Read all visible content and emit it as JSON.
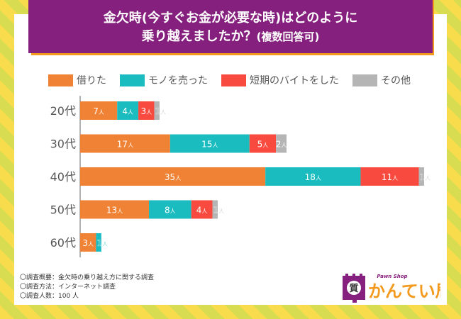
{
  "title": {
    "line1": "金欠時(今すぐお金が必要な時)はどのように",
    "line2": "乗り越えましたか？",
    "line2_suffix": "(複数回答可)"
  },
  "chart_data": {
    "type": "bar",
    "orientation": "horizontal",
    "stacked": true,
    "title": "金欠時(今すぐお金が必要な時)はどのように乗り越えましたか？(複数回答可)",
    "xlabel": "",
    "ylabel": "",
    "unit_suffix": "人",
    "categories": [
      "20代",
      "30代",
      "40代",
      "50代",
      "60代"
    ],
    "series": [
      {
        "name": "借りた",
        "color": "#ef8234",
        "values": [
          7,
          17,
          35,
          13,
          3
        ]
      },
      {
        "name": "モノを売った",
        "color": "#1bbcbf",
        "values": [
          4,
          15,
          18,
          8,
          1
        ]
      },
      {
        "name": "短期のバイトをした",
        "color": "#f84a3e",
        "values": [
          3,
          5,
          11,
          4,
          0
        ]
      },
      {
        "name": "その他",
        "color": "#b5b5b5",
        "values": [
          1,
          2,
          1,
          1,
          0
        ]
      }
    ],
    "xlim": [
      0,
      65
    ],
    "grid": false,
    "legend_position": "top"
  },
  "notes": [
    "〇調査概要：金欠時の乗り越え方に関する調査",
    "〇調査方法：インターネット調査",
    "〇調査人数：100 人"
  ],
  "logo": {
    "tagline": "Pawn Shop",
    "name": "かんてい局",
    "emblem_char": "質",
    "brand_purple": "#86207e",
    "brand_orange": "#f39a1e"
  }
}
